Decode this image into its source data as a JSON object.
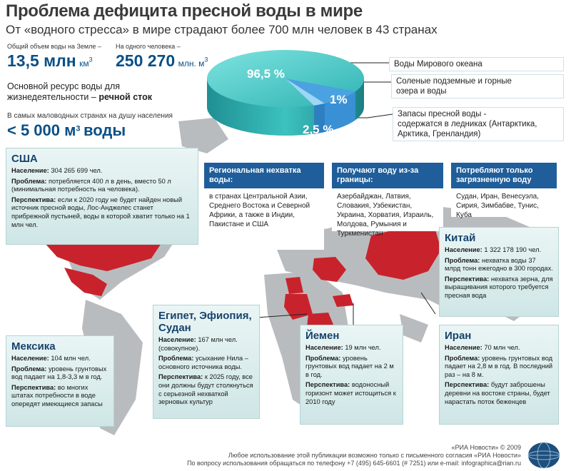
{
  "header": {
    "title": "Проблема дефицита пресной воды в мире",
    "subtitle": "От «водного стресса» в мире страдают более 700 млн человек в 43 странах"
  },
  "stats": {
    "total_label": "Общий объем воды на Земле –",
    "total_value": "13,5 млн",
    "total_unit": "км",
    "total_sup": "3",
    "person_label": "На одного человека –",
    "person_value": "250 270",
    "person_unit": "млн. м",
    "person_sup": "3",
    "resource_text": "Основной ресурс воды для жизнедеятельности –",
    "resource_bold": "речной сток",
    "lowwater_label": "В самых маловодных странах на душу населения",
    "lowwater_value": "< 5 000 м",
    "lowwater_sup": "3",
    "lowwater_word": "воды"
  },
  "pie": {
    "pct_ocean": "96,5 %",
    "pct_ground": "1%",
    "pct_fresh": "2,5 %",
    "label_ocean": "Воды Мирового океана",
    "label_ground_1": "Соленые подземные и горные",
    "label_ground_2": "озера и воды",
    "label_fresh_1": "Запасы пресной воды -",
    "label_fresh_2": "содержатся в ледниках (Антарктика,",
    "label_fresh_3": "Арктика, Гренландия)"
  },
  "categories": [
    {
      "title": "Региональная нехватка воды:",
      "body": "в странах Центральной Азии, Среднего Востока и Северной Африки, а также в Индии, Пакистане и США"
    },
    {
      "title": "Получают воду из-за границы:",
      "body": "Азербайджан, Латвия, Словакия, Узбекистан, Украина, Хорватия, Израиль, Молдова, Румыния и Туркменистан"
    },
    {
      "title": "Потребляют только загрязненную воду",
      "body": "Судан, Иран, Венесуэла, Сирия, Зимбабве, Тунис, Куба"
    }
  ],
  "countries": {
    "usa": {
      "name": "США",
      "pop_label": "Население:",
      "pop": "304 265 699 чел.",
      "prob_label": "Проблема:",
      "prob": "потребляется 400 л в день, вместо 50 л (минимальная потребность на человека).",
      "persp_label": "Перспектива:",
      "persp": "если к 2020 году не будет найден новый источник пресной воды, Лос-Анджелес станет прибрежной пустыней, воды в которой хватит только на 1 млн чел."
    },
    "china": {
      "name": "Китай",
      "pop_label": "Население:",
      "pop": "1 322 178 190 чел.",
      "prob_label": "Проблема:",
      "prob": "нехватка воды 37 млрд тонн ежегодно в 300 городах.",
      "persp_label": "Перспектива:",
      "persp": "нехватка зерна, для выращивания которого требуется пресная вода"
    },
    "egypt": {
      "name": "Египет, Эфиопия, Судан",
      "pop_label": "Население:",
      "pop": "167 млн чел. (совокупное).",
      "prob_label": "Проблема:",
      "prob": "усыхание Нила – основного источника воды.",
      "persp_label": "Перспектива:",
      "persp": "к 2025 году, все они должны будут столкнуться с серьезной нехваткой зерновых культур"
    },
    "mexico": {
      "name": "Мексика",
      "pop_label": "Население:",
      "pop": "104 млн чел.",
      "prob_label": "Проблема:",
      "prob": "уровень грунтовых вод падает на 1,8-3,3 м в год.",
      "persp_label": "Перспектива:",
      "persp": "во многих штатах потребности в воде опередят имеющиеся запасы"
    },
    "yemen": {
      "name": "Йемен",
      "pop_label": "Население:",
      "pop": "19 млн чел.",
      "prob_label": "Проблема:",
      "prob": "уровень грунтовых вод падает на 2 м в год.",
      "persp_label": "Перспектива:",
      "persp": "водоносный горизонт может истощиться к 2010 году"
    },
    "iran": {
      "name": "Иран",
      "pop_label": "Население:",
      "pop": "70 млн чел.",
      "prob_label": "Проблема:",
      "prob": "уровень грунтовых вод падает на 2,8 м в год. В последний раз – на 8 м.",
      "persp_label": "Перспектива:",
      "persp": "будут заброшены деревни на востоке страны, будет нарастать поток беженцев"
    }
  },
  "footer": {
    "line1": "«РИА Новости» © 2009",
    "line2": "Любое использование этой публикации возможно только с письменного согласия «РИА Новости»",
    "line3": "По вопросу использования обращаться по телефону +7 (495) 645-6601 (# 7251) или e-mail: infographica@rian.ru"
  },
  "colors": {
    "ocean": "#3fc1c0",
    "fresh": "#4aa3e0",
    "highlight": "#c8232c",
    "brand": "#1f5e9a"
  }
}
